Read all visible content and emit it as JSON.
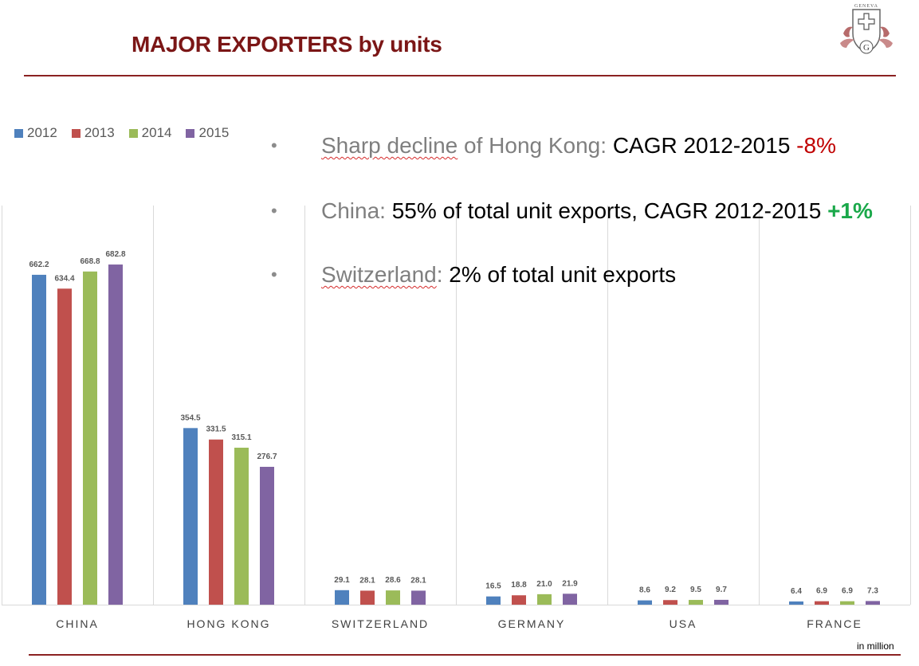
{
  "header": {
    "title": "MAJOR EXPORTERS by units"
  },
  "logo": {
    "label": "GENEVA",
    "monogram": "G",
    "icon": "swiss-cross-crest-icon"
  },
  "bullets": [
    {
      "label": "Sharp decline",
      "middle": " of Hong Kong: ",
      "highlight": "CAGR 2012-2015 ",
      "change": "-8%",
      "change_color": "#c00000"
    },
    {
      "label": "China",
      "middle": ": ",
      "highlight": "55% of total unit exports, CAGR 2012-2015 ",
      "change": "+1%",
      "change_color": "#1aa84a"
    },
    {
      "label": "Switzerland",
      "middle": ": ",
      "highlight": "2% of total unit exports",
      "change": "",
      "change_color": ""
    }
  ],
  "chart_data": {
    "type": "bar",
    "title": "",
    "xlabel": "",
    "ylabel": "",
    "ylim": [
      0,
      800
    ],
    "grid": false,
    "legend_position": "top-left",
    "categories": [
      "CHINA",
      "HONG KONG",
      "SWITZERLAND",
      "GERMANY",
      "USA",
      "FRANCE"
    ],
    "series": [
      {
        "name": "2012",
        "color": "#4f81bd",
        "values": [
          662.2,
          354.5,
          29.1,
          16.5,
          8.6,
          6.4
        ],
        "labels": [
          "662.2",
          "354.5",
          "29.1",
          "16.5",
          "8.6",
          "6.4"
        ]
      },
      {
        "name": "2013",
        "color": "#c0504d",
        "values": [
          634.4,
          331.5,
          28.1,
          18.8,
          9.2,
          6.9
        ],
        "labels": [
          "634.4",
          "331.5",
          "28.1",
          "18.8",
          "9.2",
          "6.9"
        ]
      },
      {
        "name": "2014",
        "color": "#9bbb59",
        "values": [
          668.8,
          315.1,
          28.6,
          21.0,
          9.5,
          6.9
        ],
        "labels": [
          "668.8",
          "315.1",
          "28.6",
          "21.0",
          "9.5",
          "6.9"
        ]
      },
      {
        "name": "2015",
        "color": "#8064a2",
        "values": [
          682.8,
          276.7,
          28.1,
          21.9,
          9.7,
          7.3
        ],
        "labels": [
          "682.8",
          "276.7",
          "28.1",
          "21.9",
          "9.7",
          "7.3"
        ]
      }
    ],
    "units_note": "in million"
  }
}
